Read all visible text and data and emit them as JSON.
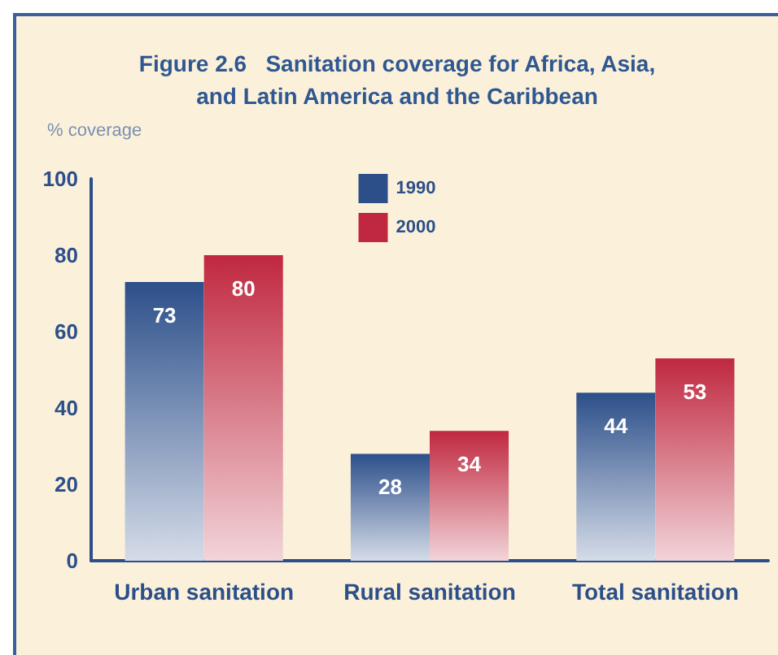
{
  "chart_data": {
    "type": "bar",
    "title": "Figure 2.6   Sanitation coverage for Africa, Asia,\nand Latin America and the Caribbean",
    "ylabel": "% coverage",
    "categories": [
      "Urban sanitation",
      "Rural sanitation",
      "Total sanitation"
    ],
    "series": [
      {
        "name": "1990",
        "color": "#2c4f8a",
        "values": [
          73,
          28,
          44
        ]
      },
      {
        "name": "2000",
        "color": "#c0283f",
        "values": [
          80,
          34,
          53
        ]
      }
    ],
    "ylim": [
      0,
      100
    ],
    "yticks": [
      0,
      20,
      40,
      60,
      80,
      100
    ],
    "grid": false,
    "legend": "top",
    "data_labels": true
  }
}
